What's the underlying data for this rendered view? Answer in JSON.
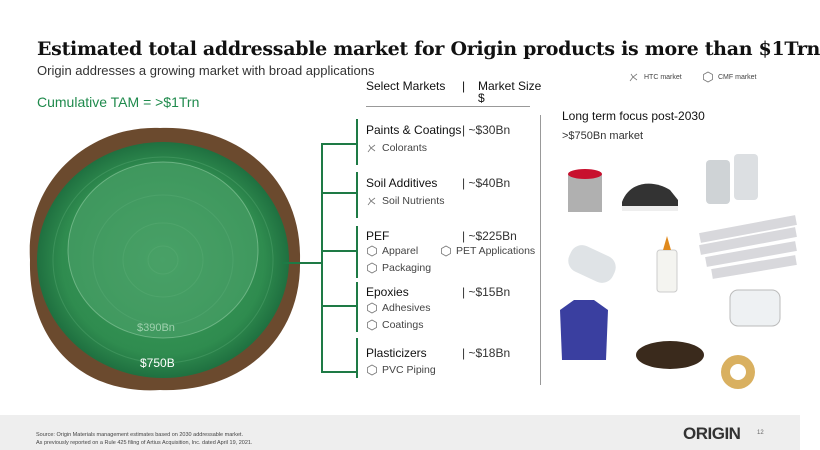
{
  "title": "Estimated total addressable market for Origin products is more than $1Trn",
  "subtitle": "Origin addresses a growing market with broad applications",
  "tam_label": "Cumulative TAM = >$1Trn",
  "stump": {
    "inner_label": "$390Bn",
    "outer_label": "$750B",
    "colors": {
      "green": "#2e9a52",
      "bark": "#6b4a2e"
    }
  },
  "header": {
    "col1": "Select Markets",
    "sep": "|",
    "col2": "Market Size",
    "col2_unit": "$"
  },
  "legend": [
    {
      "icon": "htc-molecule-icon",
      "label": "HTC market"
    },
    {
      "icon": "cmf-hexagon-icon",
      "label": "CMF market"
    }
  ],
  "markets": [
    {
      "name": "Paints & Coatings",
      "size": "| ~$30Bn",
      "apps": [
        {
          "icon": "htc",
          "label": "Colorants"
        }
      ]
    },
    {
      "name": "Soil Additives",
      "size": "| ~$40Bn",
      "apps": [
        {
          "icon": "htc",
          "label": "Soil Nutrients"
        }
      ]
    },
    {
      "name": "PEF",
      "size": "| ~$225Bn",
      "apps": [
        {
          "icon": "cmf",
          "label": "Apparel"
        },
        {
          "icon": "cmf",
          "label": "PET Applications"
        },
        {
          "icon": "cmf",
          "label": "Packaging"
        }
      ]
    },
    {
      "name": "Epoxies",
      "size": "| ~$15Bn",
      "apps": [
        {
          "icon": "cmf",
          "label": "Adhesives"
        },
        {
          "icon": "cmf",
          "label": "Coatings"
        }
      ]
    },
    {
      "name": "Plasticizers",
      "size": "| ~$18Bn",
      "apps": [
        {
          "icon": "cmf",
          "label": "PVC Piping"
        }
      ]
    }
  ],
  "long_term": {
    "title": "Long term focus post-2030",
    "value": ">$750Bn market"
  },
  "footer": {
    "source": "Source: Origin Materials management estimates based on 2030 addressable market.",
    "note": "As previously reported on a Rule 425 filing of Artius Acquisition, Inc. dated April 19, 2021.",
    "logo": "ORIGIN",
    "page": "12"
  },
  "accent": "#1e7a45"
}
